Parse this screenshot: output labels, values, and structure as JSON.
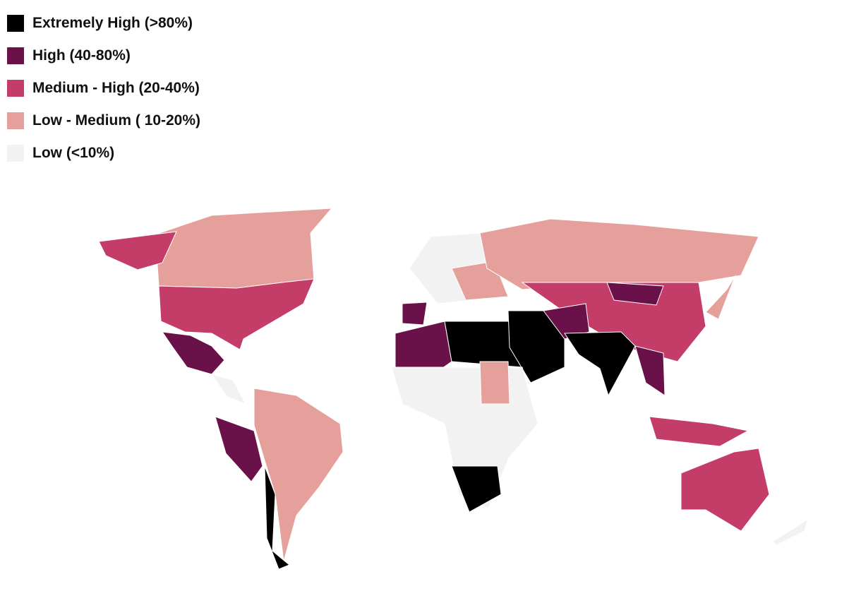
{
  "legend": {
    "items": [
      {
        "label": "Extremely High (>80%)",
        "color": "#000000"
      },
      {
        "label": "High (40-80%)",
        "color": "#6b1149"
      },
      {
        "label": "Medium - High (20-40%)",
        "color": "#c43c68"
      },
      {
        "label": "Low - Medium ( 10-20%)",
        "color": "#e6a09b"
      },
      {
        "label": "Low (<10%)",
        "color": "#f2f2f2"
      }
    ]
  }
}
